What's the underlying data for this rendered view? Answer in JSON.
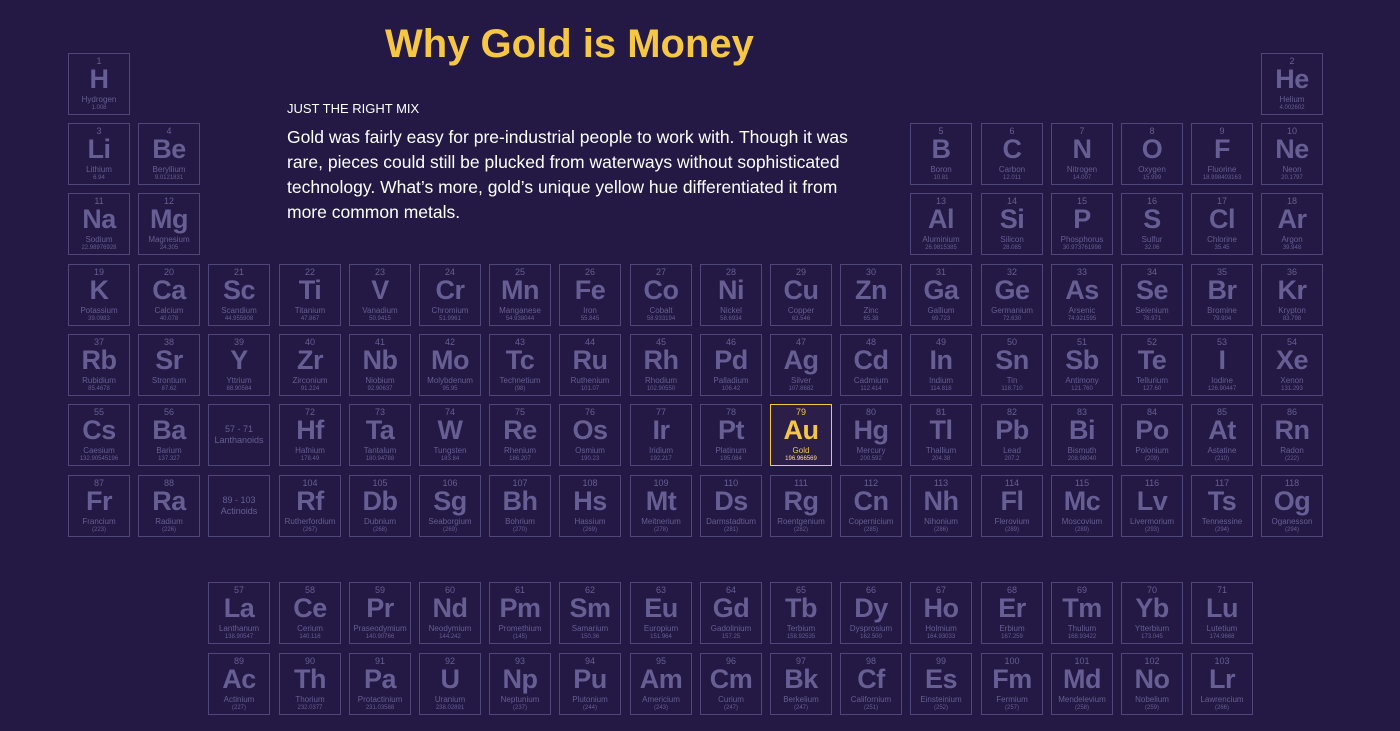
{
  "title": "Why Gold is Money",
  "subtitle": "JUST THE RIGHT MIX",
  "body": "Gold was fairly easy for pre-industrial people to work with. Though it was rare, pieces could still be plucked from waterways without sophisticated technology. What’s more, gold’s unique yellow hue differentiated it from more common metals.",
  "colors": {
    "background": "#231944",
    "cell_border": "#4f4679",
    "cell_text": "#675e93",
    "highlight": "#f6c744",
    "body_text": "#ffffff"
  },
  "highlighted_symbol": "Au",
  "elements": [
    {
      "n": 1,
      "sym": "H",
      "name": "Hydrogen",
      "mass": "1.008",
      "row": 1,
      "col": 1
    },
    {
      "n": 2,
      "sym": "He",
      "name": "Helium",
      "mass": "4.002602",
      "row": 1,
      "col": 18
    },
    {
      "n": 3,
      "sym": "Li",
      "name": "Lithium",
      "mass": "6.94",
      "row": 2,
      "col": 1
    },
    {
      "n": 4,
      "sym": "Be",
      "name": "Beryllium",
      "mass": "9.0121831",
      "row": 2,
      "col": 2
    },
    {
      "n": 5,
      "sym": "B",
      "name": "Boron",
      "mass": "10.81",
      "row": 2,
      "col": 13
    },
    {
      "n": 6,
      "sym": "C",
      "name": "Carbon",
      "mass": "12.011",
      "row": 2,
      "col": 14
    },
    {
      "n": 7,
      "sym": "N",
      "name": "Nitrogen",
      "mass": "14.007",
      "row": 2,
      "col": 15
    },
    {
      "n": 8,
      "sym": "O",
      "name": "Oxygen",
      "mass": "15.999",
      "row": 2,
      "col": 16
    },
    {
      "n": 9,
      "sym": "F",
      "name": "Fluorine",
      "mass": "18.998403163",
      "row": 2,
      "col": 17
    },
    {
      "n": 10,
      "sym": "Ne",
      "name": "Neon",
      "mass": "20.1797",
      "row": 2,
      "col": 18
    },
    {
      "n": 11,
      "sym": "Na",
      "name": "Sodium",
      "mass": "22.98976928",
      "row": 3,
      "col": 1
    },
    {
      "n": 12,
      "sym": "Mg",
      "name": "Magnesium",
      "mass": "24.305",
      "row": 3,
      "col": 2
    },
    {
      "n": 13,
      "sym": "Al",
      "name": "Aluminium",
      "mass": "26.9815385",
      "row": 3,
      "col": 13
    },
    {
      "n": 14,
      "sym": "Si",
      "name": "Silicon",
      "mass": "28.085",
      "row": 3,
      "col": 14
    },
    {
      "n": 15,
      "sym": "P",
      "name": "Phosphorus",
      "mass": "30.973761998",
      "row": 3,
      "col": 15
    },
    {
      "n": 16,
      "sym": "S",
      "name": "Sulfur",
      "mass": "32.06",
      "row": 3,
      "col": 16
    },
    {
      "n": 17,
      "sym": "Cl",
      "name": "Chlorine",
      "mass": "35.45",
      "row": 3,
      "col": 17
    },
    {
      "n": 18,
      "sym": "Ar",
      "name": "Argon",
      "mass": "39.948",
      "row": 3,
      "col": 18
    },
    {
      "n": 19,
      "sym": "K",
      "name": "Potassium",
      "mass": "39.0983",
      "row": 4,
      "col": 1
    },
    {
      "n": 20,
      "sym": "Ca",
      "name": "Calcium",
      "mass": "40.078",
      "row": 4,
      "col": 2
    },
    {
      "n": 21,
      "sym": "Sc",
      "name": "Scandium",
      "mass": "44.955908",
      "row": 4,
      "col": 3
    },
    {
      "n": 22,
      "sym": "Ti",
      "name": "Titanium",
      "mass": "47.867",
      "row": 4,
      "col": 4
    },
    {
      "n": 23,
      "sym": "V",
      "name": "Vanadium",
      "mass": "50.9415",
      "row": 4,
      "col": 5
    },
    {
      "n": 24,
      "sym": "Cr",
      "name": "Chromium",
      "mass": "51.9961",
      "row": 4,
      "col": 6
    },
    {
      "n": 25,
      "sym": "Mn",
      "name": "Manganese",
      "mass": "54.938044",
      "row": 4,
      "col": 7
    },
    {
      "n": 26,
      "sym": "Fe",
      "name": "Iron",
      "mass": "55.845",
      "row": 4,
      "col": 8
    },
    {
      "n": 27,
      "sym": "Co",
      "name": "Cobalt",
      "mass": "58.933194",
      "row": 4,
      "col": 9
    },
    {
      "n": 28,
      "sym": "Ni",
      "name": "Nickel",
      "mass": "58.6934",
      "row": 4,
      "col": 10
    },
    {
      "n": 29,
      "sym": "Cu",
      "name": "Copper",
      "mass": "63.546",
      "row": 4,
      "col": 11
    },
    {
      "n": 30,
      "sym": "Zn",
      "name": "Zinc",
      "mass": "65.38",
      "row": 4,
      "col": 12
    },
    {
      "n": 31,
      "sym": "Ga",
      "name": "Gallium",
      "mass": "69.723",
      "row": 4,
      "col": 13
    },
    {
      "n": 32,
      "sym": "Ge",
      "name": "Germanium",
      "mass": "72.630",
      "row": 4,
      "col": 14
    },
    {
      "n": 33,
      "sym": "As",
      "name": "Arsenic",
      "mass": "74.921595",
      "row": 4,
      "col": 15
    },
    {
      "n": 34,
      "sym": "Se",
      "name": "Selenium",
      "mass": "78.971",
      "row": 4,
      "col": 16
    },
    {
      "n": 35,
      "sym": "Br",
      "name": "Bromine",
      "mass": "79.904",
      "row": 4,
      "col": 17
    },
    {
      "n": 36,
      "sym": "Kr",
      "name": "Krypton",
      "mass": "83.798",
      "row": 4,
      "col": 18
    },
    {
      "n": 37,
      "sym": "Rb",
      "name": "Rubidium",
      "mass": "85.4678",
      "row": 5,
      "col": 1
    },
    {
      "n": 38,
      "sym": "Sr",
      "name": "Strontium",
      "mass": "87.62",
      "row": 5,
      "col": 2
    },
    {
      "n": 39,
      "sym": "Y",
      "name": "Yttrium",
      "mass": "88.90584",
      "row": 5,
      "col": 3
    },
    {
      "n": 40,
      "sym": "Zr",
      "name": "Zirconium",
      "mass": "91.224",
      "row": 5,
      "col": 4
    },
    {
      "n": 41,
      "sym": "Nb",
      "name": "Niobium",
      "mass": "92.90637",
      "row": 5,
      "col": 5
    },
    {
      "n": 42,
      "sym": "Mo",
      "name": "Molybdenum",
      "mass": "95.95",
      "row": 5,
      "col": 6
    },
    {
      "n": 43,
      "sym": "Tc",
      "name": "Technetium",
      "mass": "(98)",
      "row": 5,
      "col": 7
    },
    {
      "n": 44,
      "sym": "Ru",
      "name": "Ruthenium",
      "mass": "101.07",
      "row": 5,
      "col": 8
    },
    {
      "n": 45,
      "sym": "Rh",
      "name": "Rhodium",
      "mass": "102.90550",
      "row": 5,
      "col": 9
    },
    {
      "n": 46,
      "sym": "Pd",
      "name": "Palladium",
      "mass": "106.42",
      "row": 5,
      "col": 10
    },
    {
      "n": 47,
      "sym": "Ag",
      "name": "Silver",
      "mass": "107.8682",
      "row": 5,
      "col": 11
    },
    {
      "n": 48,
      "sym": "Cd",
      "name": "Cadmium",
      "mass": "112.414",
      "row": 5,
      "col": 12
    },
    {
      "n": 49,
      "sym": "In",
      "name": "Indium",
      "mass": "114.818",
      "row": 5,
      "col": 13
    },
    {
      "n": 50,
      "sym": "Sn",
      "name": "Tin",
      "mass": "118.710",
      "row": 5,
      "col": 14
    },
    {
      "n": 51,
      "sym": "Sb",
      "name": "Antimony",
      "mass": "121.760",
      "row": 5,
      "col": 15
    },
    {
      "n": 52,
      "sym": "Te",
      "name": "Tellurium",
      "mass": "127.60",
      "row": 5,
      "col": 16
    },
    {
      "n": 53,
      "sym": "I",
      "name": "Iodine",
      "mass": "126.90447",
      "row": 5,
      "col": 17
    },
    {
      "n": 54,
      "sym": "Xe",
      "name": "Xenon",
      "mass": "131.293",
      "row": 5,
      "col": 18
    },
    {
      "n": 55,
      "sym": "Cs",
      "name": "Caesium",
      "mass": "132.90545196",
      "row": 6,
      "col": 1
    },
    {
      "n": 56,
      "sym": "Ba",
      "name": "Barium",
      "mass": "137.327",
      "row": 6,
      "col": 2
    },
    {
      "n": 72,
      "sym": "Hf",
      "name": "Hafnium",
      "mass": "178.49",
      "row": 6,
      "col": 4
    },
    {
      "n": 73,
      "sym": "Ta",
      "name": "Tantalum",
      "mass": "180.94788",
      "row": 6,
      "col": 5
    },
    {
      "n": 74,
      "sym": "W",
      "name": "Tungsten",
      "mass": "183.84",
      "row": 6,
      "col": 6
    },
    {
      "n": 75,
      "sym": "Re",
      "name": "Rhenium",
      "mass": "186.207",
      "row": 6,
      "col": 7
    },
    {
      "n": 76,
      "sym": "Os",
      "name": "Osmium",
      "mass": "190.23",
      "row": 6,
      "col": 8
    },
    {
      "n": 77,
      "sym": "Ir",
      "name": "Iridium",
      "mass": "192.217",
      "row": 6,
      "col": 9
    },
    {
      "n": 78,
      "sym": "Pt",
      "name": "Platinum",
      "mass": "195.084",
      "row": 6,
      "col": 10
    },
    {
      "n": 79,
      "sym": "Au",
      "name": "Gold",
      "mass": "196.966569",
      "row": 6,
      "col": 11
    },
    {
      "n": 80,
      "sym": "Hg",
      "name": "Mercury",
      "mass": "200.592",
      "row": 6,
      "col": 12
    },
    {
      "n": 81,
      "sym": "Tl",
      "name": "Thallium",
      "mass": "204.38",
      "row": 6,
      "col": 13
    },
    {
      "n": 82,
      "sym": "Pb",
      "name": "Lead",
      "mass": "207.2",
      "row": 6,
      "col": 14
    },
    {
      "n": 83,
      "sym": "Bi",
      "name": "Bismuth",
      "mass": "208.98040",
      "row": 6,
      "col": 15
    },
    {
      "n": 84,
      "sym": "Po",
      "name": "Polonium",
      "mass": "(209)",
      "row": 6,
      "col": 16
    },
    {
      "n": 85,
      "sym": "At",
      "name": "Astatine",
      "mass": "(210)",
      "row": 6,
      "col": 17
    },
    {
      "n": 86,
      "sym": "Rn",
      "name": "Radon",
      "mass": "(222)",
      "row": 6,
      "col": 18
    },
    {
      "n": 87,
      "sym": "Fr",
      "name": "Francium",
      "mass": "(223)",
      "row": 7,
      "col": 1
    },
    {
      "n": 88,
      "sym": "Ra",
      "name": "Radium",
      "mass": "(226)",
      "row": 7,
      "col": 2
    },
    {
      "n": 104,
      "sym": "Rf",
      "name": "Rutherfordium",
      "mass": "(267)",
      "row": 7,
      "col": 4
    },
    {
      "n": 105,
      "sym": "Db",
      "name": "Dubnium",
      "mass": "(268)",
      "row": 7,
      "col": 5
    },
    {
      "n": 106,
      "sym": "Sg",
      "name": "Seaborgium",
      "mass": "(269)",
      "row": 7,
      "col": 6
    },
    {
      "n": 107,
      "sym": "Bh",
      "name": "Bohrium",
      "mass": "(270)",
      "row": 7,
      "col": 7
    },
    {
      "n": 108,
      "sym": "Hs",
      "name": "Hassium",
      "mass": "(269)",
      "row": 7,
      "col": 8
    },
    {
      "n": 109,
      "sym": "Mt",
      "name": "Meitnerium",
      "mass": "(278)",
      "row": 7,
      "col": 9
    },
    {
      "n": 110,
      "sym": "Ds",
      "name": "Darmstadtium",
      "mass": "(281)",
      "row": 7,
      "col": 10
    },
    {
      "n": 111,
      "sym": "Rg",
      "name": "Roentgenium",
      "mass": "(282)",
      "row": 7,
      "col": 11
    },
    {
      "n": 112,
      "sym": "Cn",
      "name": "Copernicium",
      "mass": "(285)",
      "row": 7,
      "col": 12
    },
    {
      "n": 113,
      "sym": "Nh",
      "name": "Nihonium",
      "mass": "(286)",
      "row": 7,
      "col": 13
    },
    {
      "n": 114,
      "sym": "Fl",
      "name": "Flerovium",
      "mass": "(289)",
      "row": 7,
      "col": 14
    },
    {
      "n": 115,
      "sym": "Mc",
      "name": "Moscovium",
      "mass": "(289)",
      "row": 7,
      "col": 15
    },
    {
      "n": 116,
      "sym": "Lv",
      "name": "Livermorium",
      "mass": "(293)",
      "row": 7,
      "col": 16
    },
    {
      "n": 117,
      "sym": "Ts",
      "name": "Tennessine",
      "mass": "(294)",
      "row": 7,
      "col": 17
    },
    {
      "n": 118,
      "sym": "Og",
      "name": "Oganesson",
      "mass": "(294)",
      "row": 7,
      "col": 18
    },
    {
      "n": 57,
      "sym": "La",
      "name": "Lanthanum",
      "mass": "138.90547",
      "row": 9,
      "col": 3
    },
    {
      "n": 58,
      "sym": "Ce",
      "name": "Cerium",
      "mass": "140.116",
      "row": 9,
      "col": 4
    },
    {
      "n": 59,
      "sym": "Pr",
      "name": "Praseodymium",
      "mass": "140.90766",
      "row": 9,
      "col": 5
    },
    {
      "n": 60,
      "sym": "Nd",
      "name": "Neodymium",
      "mass": "144.242",
      "row": 9,
      "col": 6
    },
    {
      "n": 61,
      "sym": "Pm",
      "name": "Promethium",
      "mass": "(145)",
      "row": 9,
      "col": 7
    },
    {
      "n": 62,
      "sym": "Sm",
      "name": "Samarium",
      "mass": "150.36",
      "row": 9,
      "col": 8
    },
    {
      "n": 63,
      "sym": "Eu",
      "name": "Europium",
      "mass": "151.964",
      "row": 9,
      "col": 9
    },
    {
      "n": 64,
      "sym": "Gd",
      "name": "Gadolinium",
      "mass": "157.25",
      "row": 9,
      "col": 10
    },
    {
      "n": 65,
      "sym": "Tb",
      "name": "Terbium",
      "mass": "158.92535",
      "row": 9,
      "col": 11
    },
    {
      "n": 66,
      "sym": "Dy",
      "name": "Dysprosium",
      "mass": "162.500",
      "row": 9,
      "col": 12
    },
    {
      "n": 67,
      "sym": "Ho",
      "name": "Holmium",
      "mass": "164.93033",
      "row": 9,
      "col": 13
    },
    {
      "n": 68,
      "sym": "Er",
      "name": "Erbium",
      "mass": "167.259",
      "row": 9,
      "col": 14
    },
    {
      "n": 69,
      "sym": "Tm",
      "name": "Thulium",
      "mass": "168.93422",
      "row": 9,
      "col": 15
    },
    {
      "n": 70,
      "sym": "Yb",
      "name": "Ytterbium",
      "mass": "173.045",
      "row": 9,
      "col": 16
    },
    {
      "n": 71,
      "sym": "Lu",
      "name": "Lutetium",
      "mass": "174.9668",
      "row": 9,
      "col": 17
    },
    {
      "n": 89,
      "sym": "Ac",
      "name": "Actinium",
      "mass": "(227)",
      "row": 10,
      "col": 3
    },
    {
      "n": 90,
      "sym": "Th",
      "name": "Thorium",
      "mass": "232.0377",
      "row": 10,
      "col": 4
    },
    {
      "n": 91,
      "sym": "Pa",
      "name": "Protactinium",
      "mass": "231.03588",
      "row": 10,
      "col": 5
    },
    {
      "n": 92,
      "sym": "U",
      "name": "Uranium",
      "mass": "238.02891",
      "row": 10,
      "col": 6
    },
    {
      "n": 93,
      "sym": "Np",
      "name": "Neptunium",
      "mass": "(237)",
      "row": 10,
      "col": 7
    },
    {
      "n": 94,
      "sym": "Pu",
      "name": "Plutonium",
      "mass": "(244)",
      "row": 10,
      "col": 8
    },
    {
      "n": 95,
      "sym": "Am",
      "name": "Americium",
      "mass": "(243)",
      "row": 10,
      "col": 9
    },
    {
      "n": 96,
      "sym": "Cm",
      "name": "Curium",
      "mass": "(247)",
      "row": 10,
      "col": 10
    },
    {
      "n": 97,
      "sym": "Bk",
      "name": "Berkelium",
      "mass": "(247)",
      "row": 10,
      "col": 11
    },
    {
      "n": 98,
      "sym": "Cf",
      "name": "Californium",
      "mass": "(251)",
      "row": 10,
      "col": 12
    },
    {
      "n": 99,
      "sym": "Es",
      "name": "Einsteinium",
      "mass": "(252)",
      "row": 10,
      "col": 13
    },
    {
      "n": 100,
      "sym": "Fm",
      "name": "Fermium",
      "mass": "(257)",
      "row": 10,
      "col": 14
    },
    {
      "n": 101,
      "sym": "Md",
      "name": "Mendelevium",
      "mass": "(258)",
      "row": 10,
      "col": 15
    },
    {
      "n": 102,
      "sym": "No",
      "name": "Nobelium",
      "mass": "(259)",
      "row": 10,
      "col": 16
    },
    {
      "n": 103,
      "sym": "Lr",
      "name": "Lawrencium",
      "mass": "(266)",
      "row": 10,
      "col": 17
    }
  ],
  "series": [
    {
      "label": "57 - 71",
      "name": "Lanthanoids",
      "row": 6,
      "col": 3
    },
    {
      "label": "89 - 103",
      "name": "Actinoids",
      "row": 7,
      "col": 3
    }
  ]
}
